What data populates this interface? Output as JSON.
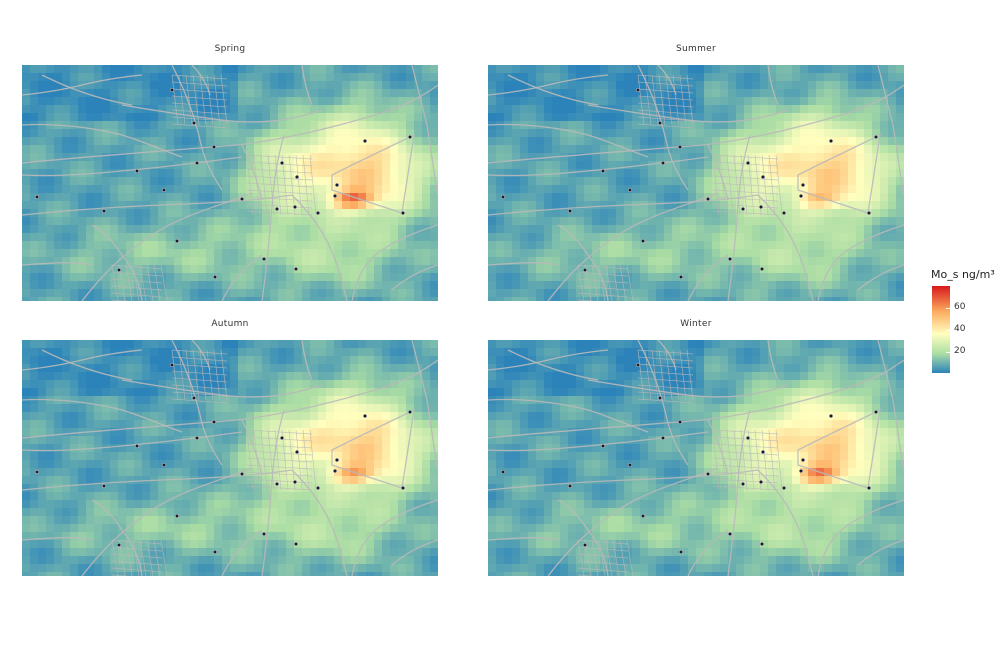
{
  "panels": [
    {
      "title": "Spring",
      "hotspot": 1.0
    },
    {
      "title": "Summer",
      "hotspot": 0.55
    },
    {
      "title": "Autumn",
      "hotspot": 0.75
    },
    {
      "title": "Winter",
      "hotspot": 0.95
    }
  ],
  "legend": {
    "title": "Mo_s ng/m³",
    "ticks": [
      "60",
      "40",
      "20"
    ],
    "colors": [
      "#d7191c",
      "#fdae61",
      "#ffffbf",
      "#abdda4",
      "#2b83ba"
    ]
  },
  "colors": {
    "road": "#b9b9b9",
    "station": "#1a1a2e"
  }
}
